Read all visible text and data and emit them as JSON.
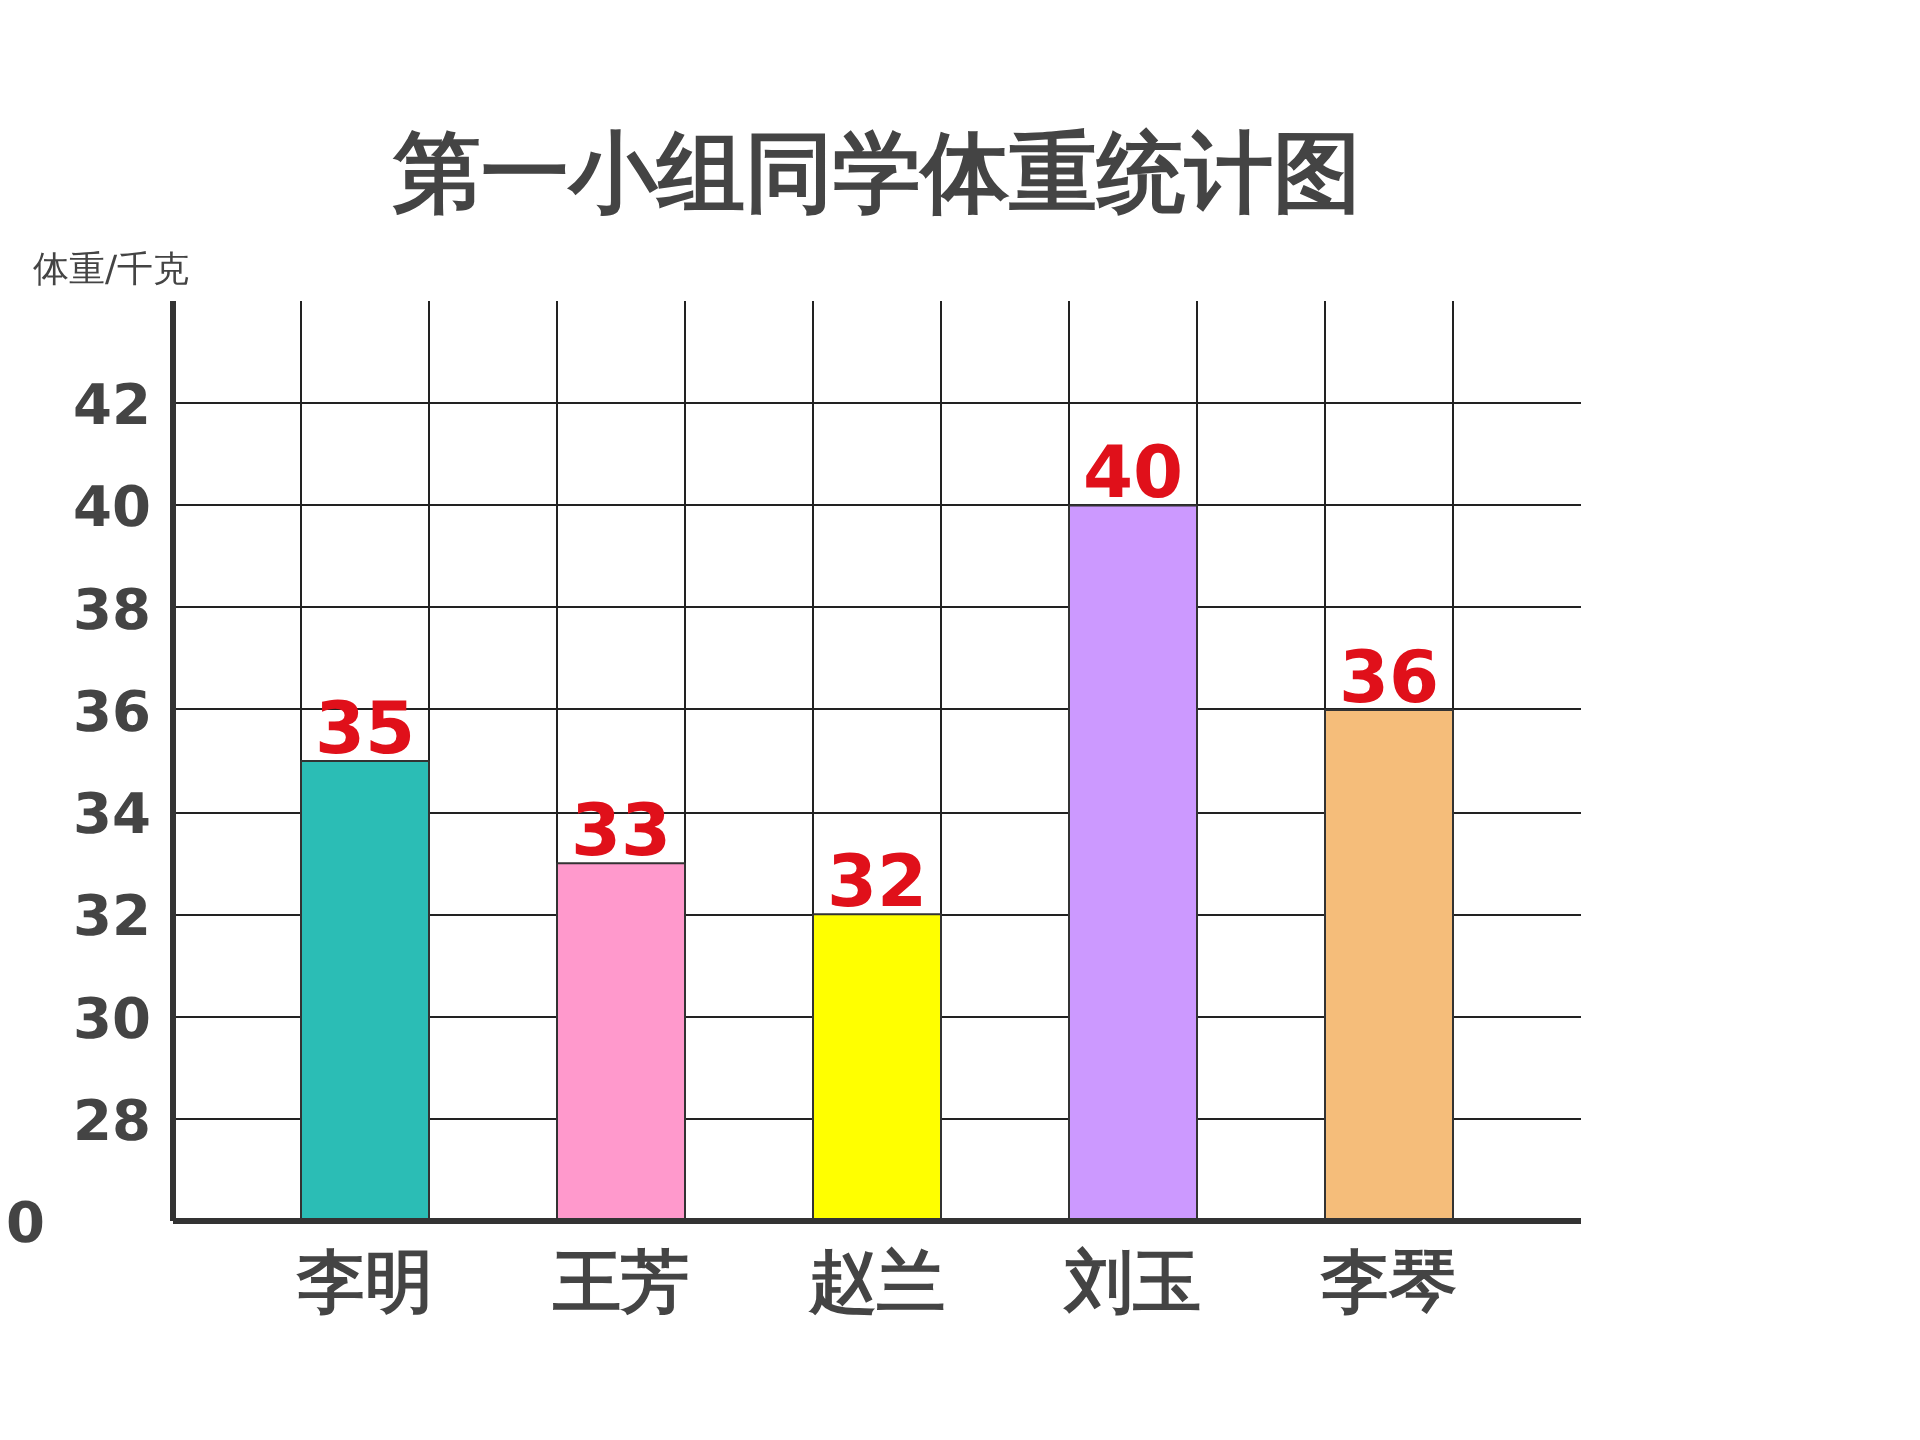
{
  "chart_data": {
    "type": "bar",
    "title": "第一小组同学体重统计图",
    "ylabel": "体重/千克",
    "categories": [
      "李明",
      "王芳",
      "赵兰",
      "刘玉",
      "李琴"
    ],
    "values": [
      35,
      33,
      32,
      40,
      36
    ],
    "colors": [
      "#2bbdb5",
      "#ff99cc",
      "#ffff00",
      "#cc99ff",
      "#f5bd7a"
    ],
    "ylim": [
      26,
      44
    ],
    "yticks": [
      28,
      30,
      32,
      34,
      36,
      38,
      40,
      42
    ],
    "annotations": [
      "0"
    ],
    "grid": true,
    "data_labels": true
  }
}
